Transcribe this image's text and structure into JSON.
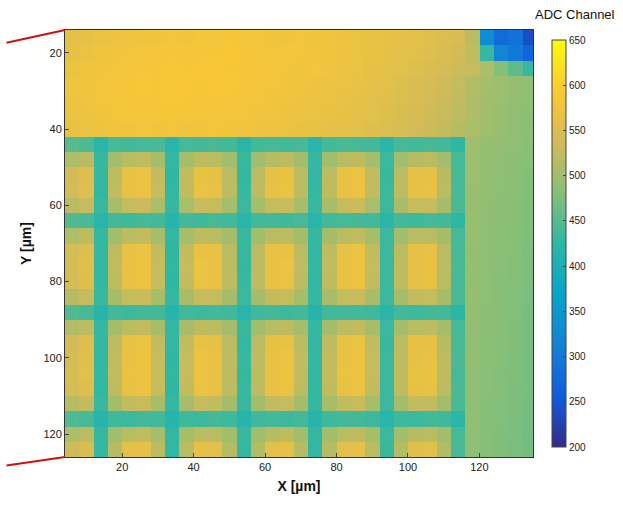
{
  "chart_data": {
    "type": "heatmap",
    "x_label": "X [µm]",
    "y_label": "Y [µm]",
    "xlim": [
      4,
      135
    ],
    "ylim": [
      126,
      14
    ],
    "xticks": [
      20,
      40,
      60,
      80,
      100,
      120
    ],
    "yticks": [
      20,
      40,
      60,
      80,
      100,
      120
    ],
    "colorbar": {
      "title": "ADC Channel",
      "range": [
        200,
        650
      ],
      "ticks": [
        200,
        250,
        300,
        350,
        400,
        450,
        500,
        550,
        600,
        650
      ]
    },
    "x": [
      6,
      10,
      14,
      18,
      22,
      26,
      30,
      34,
      38,
      42,
      46,
      50,
      54,
      58,
      62,
      66,
      70,
      74,
      78,
      82,
      86,
      90,
      94,
      98,
      102,
      106,
      110,
      114,
      118,
      122,
      126,
      130,
      134
    ],
    "y": [
      16,
      20,
      24,
      28,
      32,
      36,
      40,
      44,
      48,
      52,
      56,
      60,
      64,
      68,
      72,
      76,
      80,
      84,
      88,
      92,
      96,
      100,
      104,
      108,
      112,
      116,
      120,
      124
    ],
    "z": [
      [
        560,
        565,
        570,
        572,
        575,
        578,
        575,
        580,
        578,
        582,
        580,
        585,
        582,
        580,
        578,
        575,
        580,
        578,
        575,
        572,
        570,
        568,
        565,
        562,
        560,
        555,
        550,
        545,
        520,
        330,
        280,
        290,
        240
      ],
      [
        565,
        570,
        575,
        578,
        580,
        582,
        585,
        582,
        585,
        583,
        585,
        588,
        585,
        583,
        580,
        582,
        580,
        578,
        575,
        573,
        570,
        568,
        565,
        560,
        558,
        552,
        548,
        540,
        525,
        430,
        320,
        300,
        270
      ],
      [
        570,
        575,
        578,
        580,
        583,
        585,
        583,
        587,
        585,
        588,
        586,
        585,
        583,
        585,
        582,
        580,
        578,
        580,
        576,
        572,
        570,
        565,
        562,
        558,
        553,
        548,
        542,
        535,
        530,
        510,
        480,
        455,
        430
      ],
      [
        575,
        578,
        580,
        583,
        585,
        587,
        585,
        588,
        586,
        585,
        588,
        586,
        584,
        582,
        580,
        578,
        576,
        574,
        572,
        570,
        566,
        562,
        558,
        553,
        548,
        542,
        536,
        528,
        515,
        505,
        498,
        492,
        488
      ],
      [
        573,
        576,
        579,
        581,
        584,
        585,
        584,
        586,
        584,
        583,
        585,
        584,
        582,
        580,
        578,
        576,
        574,
        572,
        570,
        567,
        563,
        560,
        556,
        550,
        545,
        540,
        533,
        525,
        512,
        503,
        497,
        490,
        486
      ],
      [
        570,
        574,
        577,
        580,
        582,
        583,
        582,
        584,
        582,
        581,
        583,
        581,
        580,
        578,
        576,
        574,
        572,
        570,
        568,
        565,
        561,
        557,
        553,
        548,
        543,
        537,
        530,
        522,
        510,
        502,
        495,
        489,
        484
      ],
      [
        566,
        570,
        573,
        576,
        578,
        579,
        578,
        580,
        578,
        577,
        579,
        577,
        576,
        574,
        572,
        570,
        568,
        566,
        564,
        561,
        557,
        553,
        549,
        544,
        539,
        533,
        527,
        518,
        508,
        500,
        494,
        488,
        483
      ],
      [
        450,
        445,
        420,
        440,
        438,
        440,
        442,
        418,
        440,
        438,
        441,
        439,
        420,
        438,
        440,
        437,
        441,
        419,
        439,
        442,
        440,
        438,
        421,
        440,
        437,
        441,
        439,
        425,
        500,
        493,
        490,
        486,
        482
      ],
      [
        510,
        520,
        430,
        500,
        520,
        525,
        505,
        428,
        505,
        522,
        520,
        502,
        432,
        500,
        518,
        522,
        503,
        430,
        502,
        520,
        524,
        505,
        433,
        500,
        518,
        520,
        502,
        440,
        498,
        492,
        488,
        485,
        480
      ],
      [
        540,
        552,
        430,
        522,
        566,
        570,
        526,
        425,
        525,
        568,
        565,
        520,
        430,
        520,
        565,
        568,
        522,
        428,
        522,
        566,
        570,
        525,
        432,
        520,
        562,
        565,
        518,
        440,
        497,
        491,
        487,
        484,
        479
      ],
      [
        542,
        555,
        428,
        525,
        568,
        572,
        528,
        427,
        527,
        570,
        567,
        522,
        431,
        522,
        567,
        570,
        524,
        429,
        524,
        568,
        572,
        527,
        434,
        522,
        564,
        567,
        520,
        442,
        496,
        490,
        486,
        483,
        478
      ],
      [
        520,
        530,
        432,
        505,
        530,
        534,
        508,
        430,
        508,
        532,
        530,
        505,
        433,
        505,
        528,
        532,
        506,
        431,
        507,
        530,
        534,
        508,
        435,
        505,
        528,
        530,
        504,
        443,
        495,
        489,
        485,
        482,
        477
      ],
      [
        448,
        442,
        418,
        438,
        436,
        440,
        439,
        417,
        438,
        436,
        440,
        437,
        419,
        437,
        439,
        436,
        440,
        418,
        438,
        440,
        439,
        437,
        420,
        438,
        436,
        440,
        438,
        424,
        494,
        488,
        484,
        481,
        476
      ],
      [
        512,
        522,
        430,
        502,
        522,
        526,
        506,
        428,
        506,
        523,
        521,
        503,
        432,
        501,
        519,
        523,
        504,
        430,
        503,
        521,
        525,
        506,
        433,
        501,
        519,
        521,
        503,
        440,
        494,
        488,
        484,
        480,
        476
      ],
      [
        541,
        553,
        429,
        523,
        567,
        571,
        527,
        426,
        526,
        569,
        566,
        521,
        431,
        521,
        566,
        569,
        523,
        428,
        523,
        567,
        571,
        526,
        433,
        521,
        563,
        566,
        519,
        441,
        493,
        487,
        483,
        480,
        475
      ],
      [
        543,
        556,
        428,
        526,
        569,
        573,
        529,
        427,
        528,
        571,
        568,
        523,
        430,
        523,
        568,
        571,
        525,
        429,
        525,
        569,
        573,
        528,
        434,
        523,
        565,
        568,
        521,
        442,
        493,
        487,
        483,
        479,
        475
      ],
      [
        542,
        554,
        429,
        524,
        568,
        572,
        528,
        426,
        527,
        570,
        567,
        522,
        431,
        522,
        567,
        570,
        524,
        428,
        524,
        568,
        572,
        527,
        433,
        522,
        564,
        567,
        520,
        441,
        492,
        486,
        482,
        479,
        474
      ],
      [
        518,
        528,
        431,
        504,
        528,
        532,
        507,
        429,
        507,
        530,
        528,
        504,
        433,
        504,
        526,
        530,
        505,
        430,
        506,
        528,
        532,
        507,
        435,
        504,
        526,
        528,
        503,
        443,
        492,
        486,
        482,
        478,
        474
      ],
      [
        447,
        441,
        417,
        437,
        435,
        439,
        438,
        416,
        437,
        435,
        439,
        436,
        418,
        436,
        438,
        435,
        439,
        417,
        437,
        439,
        438,
        436,
        419,
        437,
        435,
        439,
        437,
        423,
        491,
        485,
        481,
        478,
        473
      ],
      [
        513,
        523,
        430,
        503,
        523,
        527,
        507,
        428,
        507,
        524,
        522,
        504,
        432,
        502,
        520,
        524,
        505,
        430,
        504,
        522,
        526,
        507,
        433,
        502,
        520,
        522,
        504,
        440,
        491,
        485,
        481,
        477,
        473
      ],
      [
        540,
        552,
        429,
        522,
        566,
        570,
        526,
        427,
        525,
        568,
        565,
        520,
        430,
        520,
        565,
        568,
        522,
        428,
        522,
        566,
        570,
        525,
        432,
        520,
        562,
        565,
        518,
        441,
        490,
        484,
        480,
        477,
        472
      ],
      [
        543,
        555,
        428,
        525,
        569,
        573,
        529,
        426,
        528,
        571,
        568,
        523,
        431,
        523,
        568,
        571,
        525,
        429,
        525,
        569,
        573,
        528,
        433,
        523,
        565,
        568,
        521,
        442,
        490,
        484,
        480,
        476,
        472
      ],
      [
        544,
        557,
        429,
        527,
        570,
        574,
        530,
        427,
        529,
        572,
        569,
        524,
        430,
        524,
        569,
        572,
        526,
        428,
        526,
        570,
        574,
        529,
        434,
        524,
        566,
        569,
        522,
        441,
        489,
        483,
        479,
        476,
        471
      ],
      [
        542,
        554,
        428,
        524,
        568,
        572,
        528,
        426,
        527,
        570,
        567,
        522,
        431,
        522,
        567,
        570,
        524,
        429,
        524,
        568,
        572,
        527,
        433,
        522,
        564,
        567,
        520,
        442,
        489,
        483,
        479,
        475,
        471
      ],
      [
        517,
        527,
        431,
        503,
        527,
        531,
        506,
        429,
        506,
        529,
        527,
        503,
        432,
        503,
        525,
        529,
        504,
        430,
        505,
        527,
        531,
        506,
        435,
        503,
        525,
        527,
        502,
        443,
        488,
        482,
        478,
        475,
        470
      ],
      [
        446,
        440,
        416,
        436,
        434,
        438,
        437,
        415,
        436,
        434,
        438,
        435,
        417,
        435,
        437,
        434,
        438,
        416,
        436,
        438,
        437,
        435,
        418,
        436,
        434,
        438,
        436,
        422,
        488,
        482,
        478,
        474,
        470
      ],
      [
        511,
        521,
        430,
        502,
        521,
        525,
        505,
        428,
        505,
        522,
        520,
        502,
        432,
        501,
        518,
        522,
        503,
        430,
        502,
        520,
        524,
        505,
        433,
        501,
        518,
        520,
        502,
        440,
        487,
        481,
        477,
        474,
        469
      ],
      [
        535,
        547,
        429,
        518,
        560,
        564,
        521,
        427,
        520,
        562,
        559,
        515,
        430,
        515,
        559,
        562,
        517,
        428,
        517,
        560,
        564,
        520,
        432,
        515,
        556,
        559,
        513,
        441,
        487,
        481,
        477,
        473,
        469
      ]
    ]
  }
}
